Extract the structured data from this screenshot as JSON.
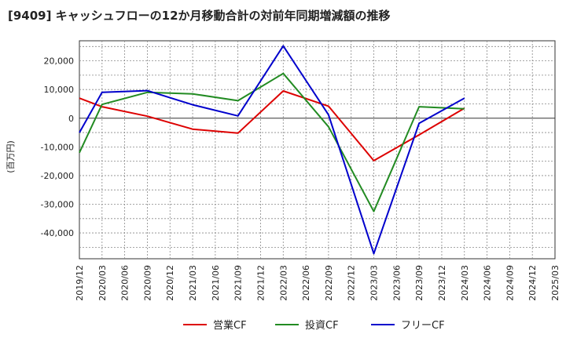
{
  "chart_data": {
    "type": "line",
    "title": "[9409]  キャッシュフローの12か月移動合計の対前年同期増減額の推移",
    "ylabel": "(百万円)",
    "xlabel": "",
    "x": [
      "2019/12",
      "2020/03",
      "2020/06",
      "2020/09",
      "2020/12",
      "2021/03",
      "2021/06",
      "2021/09",
      "2021/12",
      "2022/03",
      "2022/06",
      "2022/09",
      "2022/12",
      "2023/03",
      "2023/06",
      "2023/09",
      "2023/12",
      "2024/03",
      "2024/06",
      "2024/09",
      "2024/12",
      "2025/03"
    ],
    "ylim": [
      -49000,
      27000
    ],
    "yticks": [
      -40000,
      -30000,
      -20000,
      -10000,
      0,
      10000,
      20000
    ],
    "ytick_labels": [
      "-40,000",
      "-30,000",
      "-20,000",
      "-10,000",
      "0",
      "10,000",
      "20,000"
    ],
    "grid": true,
    "legend_position": "bottom",
    "series": [
      {
        "name": "営業CF",
        "color": "#dd0000",
        "values": [
          7000,
          4000,
          null,
          700,
          null,
          -3800,
          null,
          -5200,
          null,
          9500,
          null,
          4200,
          null,
          -14800,
          null,
          -5800,
          null,
          3500,
          null,
          null,
          null,
          null
        ]
      },
      {
        "name": "投資CF",
        "color": "#228B22",
        "values": [
          -12000,
          4800,
          null,
          9000,
          null,
          8500,
          null,
          6100,
          null,
          15600,
          null,
          -3000,
          null,
          -32500,
          null,
          4000,
          null,
          3300,
          null,
          null,
          null,
          null
        ]
      },
      {
        "name": "フリーCF",
        "color": "#0000cc",
        "values": [
          -5000,
          9000,
          null,
          9600,
          null,
          4700,
          null,
          800,
          null,
          25200,
          null,
          1200,
          null,
          -47200,
          null,
          -1800,
          null,
          7000,
          null,
          null,
          null,
          null
        ]
      }
    ]
  }
}
